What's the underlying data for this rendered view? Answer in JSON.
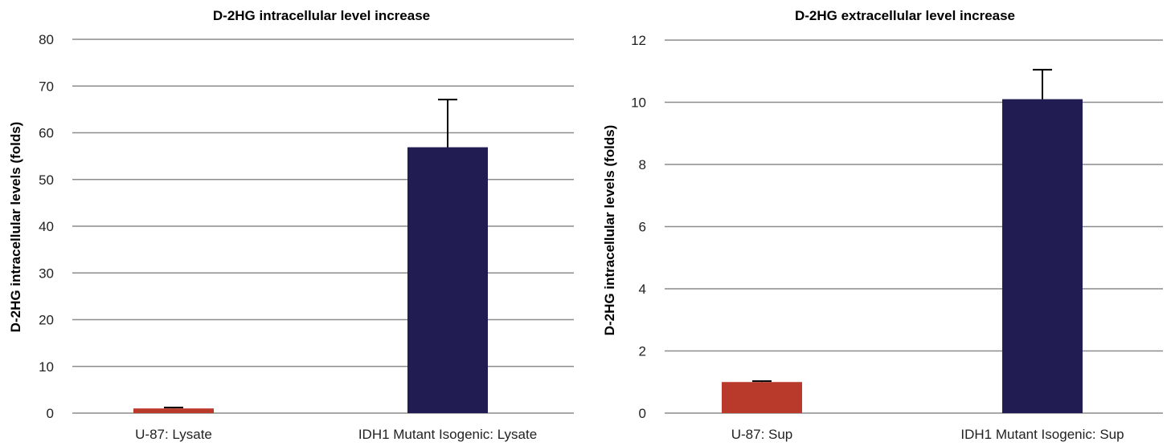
{
  "chart_data": [
    {
      "type": "bar",
      "title": "D-2HG intracellular level increase",
      "xlabel": "",
      "ylabel": "D-2HG intracellular levels (folds)",
      "ylim": [
        0,
        80
      ],
      "yticks": [
        0,
        10,
        20,
        30,
        40,
        50,
        60,
        70,
        80
      ],
      "grid": true,
      "categories": [
        "U-87: Lysate",
        "IDH1 Mutant Isogenic: Lysate"
      ],
      "values": [
        1.0,
        56.9
      ],
      "errors": [
        0.2,
        10.2
      ],
      "colors": [
        "#b93a2a",
        "#211d52"
      ]
    },
    {
      "type": "bar",
      "title": "D-2HG extracellular level increase",
      "xlabel": "",
      "ylabel": "D-2HG intracellular levels (folds)",
      "ylim": [
        0,
        12
      ],
      "yticks": [
        0,
        2,
        4,
        6,
        8,
        10,
        12
      ],
      "grid": true,
      "categories": [
        "U-87: Sup",
        "IDH1 Mutant Isogenic: Sup"
      ],
      "values": [
        1.0,
        10.1
      ],
      "errors": [
        0.03,
        0.95
      ],
      "colors": [
        "#b93a2a",
        "#211d52"
      ]
    }
  ]
}
